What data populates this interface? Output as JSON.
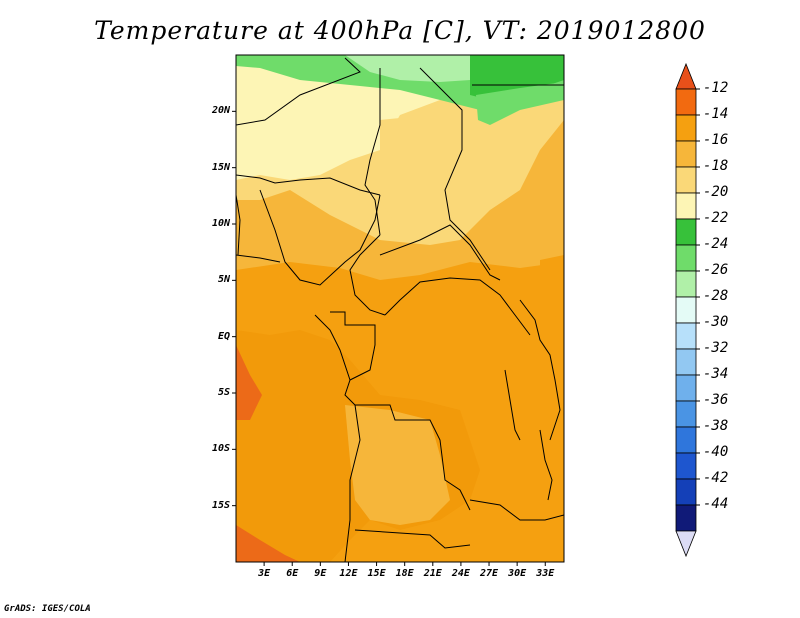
{
  "title": "Temperature at 400hPa [C], VT: 2019012800",
  "credit": "GrADS: IGES/COLA",
  "map": {
    "variable": "Temperature",
    "level": "400hPa",
    "units": "C",
    "valid_time": "2019012800",
    "lon_range": [
      0,
      35
    ],
    "lat_range": [
      -20,
      25
    ],
    "lat_ticks": [
      {
        "label": "20N",
        "value": 20
      },
      {
        "label": "15N",
        "value": 15
      },
      {
        "label": "10N",
        "value": 10
      },
      {
        "label": "5N",
        "value": 5
      },
      {
        "label": "EQ",
        "value": 0
      },
      {
        "label": "5S",
        "value": -5
      },
      {
        "label": "10S",
        "value": -10
      },
      {
        "label": "15S",
        "value": -15
      }
    ],
    "lon_ticks": [
      {
        "label": "3E",
        "value": 3
      },
      {
        "label": "6E",
        "value": 6
      },
      {
        "label": "9E",
        "value": 9
      },
      {
        "label": "12E",
        "value": 12
      },
      {
        "label": "15E",
        "value": 15
      },
      {
        "label": "18E",
        "value": 18
      },
      {
        "label": "21E",
        "value": 21
      },
      {
        "label": "24E",
        "value": 24
      },
      {
        "label": "27E",
        "value": 27
      },
      {
        "label": "30E",
        "value": 30
      },
      {
        "label": "33E",
        "value": 33
      }
    ]
  },
  "colorbar": {
    "labels": [
      "-12",
      "-14",
      "-16",
      "-18",
      "-20",
      "-22",
      "-24",
      "-26",
      "-28",
      "-30",
      "-32",
      "-34",
      "-36",
      "-38",
      "-40",
      "-42",
      "-44"
    ],
    "colors": [
      "#e8501a",
      "#f26a10",
      "#f5a010",
      "#f6b63a",
      "#fad878",
      "#fdf5b5",
      "#37c13a",
      "#6fdc6a",
      "#b0f0a8",
      "#e4fbf6",
      "#b7e0fa",
      "#92c8f2",
      "#6fb0ec",
      "#4a94e4",
      "#2f76dc",
      "#1e56cf",
      "#1440b8",
      "#101a78",
      "#dcdcf5"
    ]
  }
}
